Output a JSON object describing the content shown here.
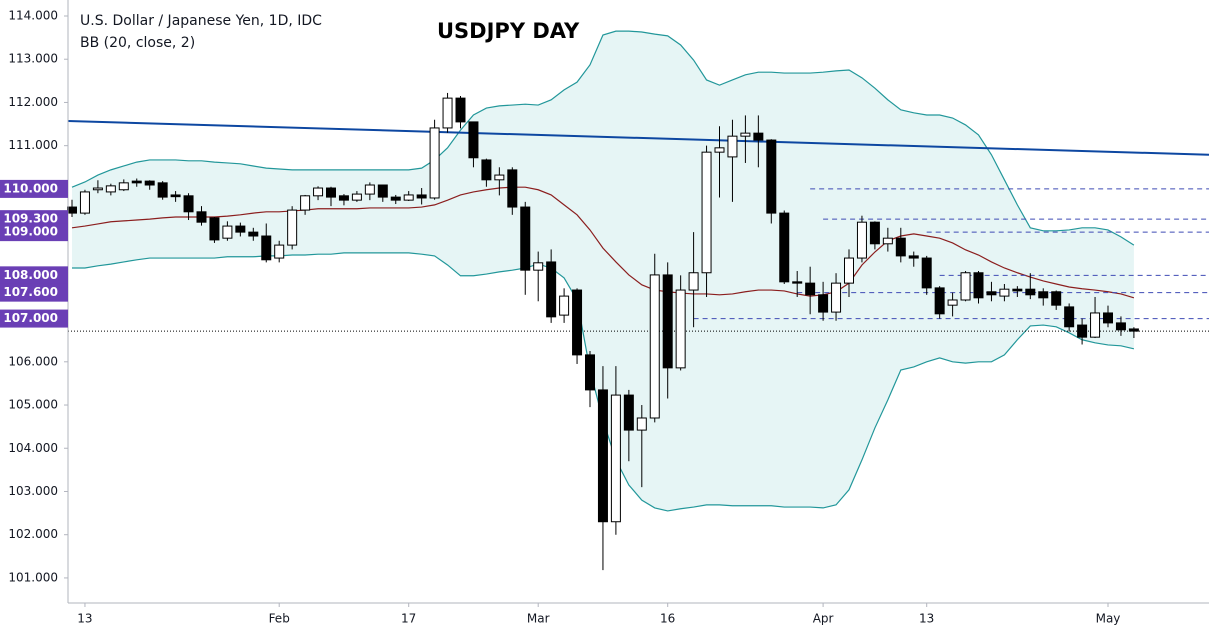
{
  "chart_data": {
    "type": "candlestick",
    "title": "USDJPY DAY",
    "symbol_label": "U.S. Dollar / Japanese Yen, 1D, IDC",
    "indicator_label": "BB (20, close, 2)",
    "categories": [
      null,
      "13",
      null,
      null,
      null,
      null,
      null,
      null,
      null,
      null,
      null,
      null,
      null,
      null,
      null,
      null,
      "Feb",
      null,
      null,
      null,
      null,
      null,
      null,
      null,
      null,
      null,
      "17",
      null,
      null,
      null,
      null,
      null,
      null,
      null,
      null,
      null,
      "Mar",
      null,
      null,
      null,
      null,
      null,
      null,
      null,
      null,
      null,
      "16",
      null,
      null,
      null,
      null,
      null,
      null,
      null,
      null,
      null,
      null,
      null,
      "Apr",
      null,
      null,
      null,
      null,
      null,
      null,
      null,
      "13",
      null,
      null,
      null,
      null,
      null,
      null,
      null,
      null,
      null,
      null,
      null,
      null,
      null,
      "May",
      null,
      null
    ],
    "open": [
      109.58,
      109.44,
      109.98,
      109.93,
      109.98,
      110.18,
      110.18,
      110.14,
      109.86,
      109.84,
      109.47,
      109.33,
      108.86,
      109.14,
      109.0,
      108.91,
      108.4,
      108.7,
      109.51,
      109.84,
      110.02,
      109.84,
      109.74,
      109.88,
      110.09,
      109.81,
      109.74,
      109.86,
      109.79,
      111.41,
      112.1,
      111.55,
      110.67,
      110.21,
      110.44,
      109.58,
      108.12,
      108.31,
      107.08,
      107.66,
      106.16,
      105.35,
      102.3,
      105.23,
      104.42,
      104.7,
      108.01,
      105.86,
      107.66,
      108.06,
      110.85,
      110.74,
      111.22,
      111.29,
      111.13,
      109.44,
      107.85,
      107.82,
      107.55,
      107.15,
      107.82,
      108.4,
      109.23,
      108.73,
      108.86,
      108.45,
      108.4,
      107.71,
      107.31,
      107.43,
      108.06,
      107.62,
      107.52,
      107.68,
      107.68,
      107.62,
      107.62,
      107.27,
      106.85,
      106.57,
      107.13,
      106.9,
      106.76
    ],
    "high": [
      109.75,
      109.98,
      110.2,
      110.12,
      110.22,
      110.24,
      110.2,
      110.18,
      109.95,
      109.9,
      109.6,
      109.35,
      109.25,
      109.22,
      109.1,
      109.2,
      108.8,
      109.6,
      109.86,
      110.06,
      110.05,
      109.88,
      109.95,
      110.15,
      110.1,
      109.86,
      109.95,
      110.02,
      111.6,
      112.22,
      112.15,
      111.55,
      110.7,
      110.5,
      110.5,
      109.7,
      108.55,
      108.6,
      107.7,
      107.7,
      106.25,
      105.9,
      105.9,
      105.35,
      105.0,
      108.5,
      108.3,
      108.0,
      109.0,
      111.0,
      111.45,
      111.6,
      111.7,
      111.7,
      111.15,
      109.5,
      108.1,
      108.2,
      107.85,
      108.05,
      108.6,
      109.38,
      109.25,
      109.1,
      109.1,
      108.55,
      108.45,
      107.75,
      107.6,
      108.1,
      108.1,
      107.85,
      107.8,
      107.75,
      108.05,
      107.7,
      107.65,
      107.35,
      107.0,
      107.5,
      107.3,
      107.05,
      106.8
    ],
    "low": [
      109.35,
      109.4,
      109.9,
      109.85,
      109.95,
      110.05,
      109.98,
      109.75,
      109.7,
      109.28,
      109.15,
      108.75,
      108.8,
      108.9,
      108.8,
      108.3,
      108.3,
      108.6,
      109.4,
      109.74,
      109.6,
      109.62,
      109.7,
      109.74,
      109.7,
      109.65,
      109.72,
      109.64,
      109.75,
      111.3,
      111.4,
      110.5,
      110.05,
      109.85,
      109.4,
      107.55,
      107.4,
      106.9,
      106.9,
      105.95,
      104.95,
      101.18,
      102.0,
      103.7,
      103.1,
      104.6,
      105.15,
      105.8,
      106.8,
      107.5,
      109.8,
      109.7,
      110.6,
      110.5,
      109.2,
      107.8,
      107.5,
      107.1,
      106.95,
      106.95,
      107.5,
      108.3,
      108.6,
      108.55,
      108.3,
      108.2,
      107.55,
      107.0,
      107.05,
      107.4,
      107.35,
      107.4,
      107.4,
      107.5,
      107.45,
      107.3,
      107.2,
      106.7,
      106.4,
      106.55,
      106.8,
      106.6,
      106.55
    ],
    "close": [
      109.44,
      109.93,
      110.02,
      110.07,
      110.14,
      110.14,
      110.09,
      109.81,
      109.82,
      109.47,
      109.23,
      108.82,
      109.14,
      109.0,
      108.91,
      108.36,
      108.7,
      109.51,
      109.84,
      110.02,
      109.81,
      109.74,
      109.88,
      110.09,
      109.81,
      109.74,
      109.86,
      109.79,
      111.41,
      112.1,
      111.55,
      110.72,
      110.21,
      110.32,
      109.58,
      108.12,
      108.29,
      107.04,
      107.52,
      106.16,
      105.35,
      102.3,
      105.23,
      104.42,
      104.7,
      108.01,
      105.86,
      107.66,
      108.06,
      110.85,
      110.95,
      111.22,
      111.29,
      111.13,
      109.44,
      107.85,
      107.82,
      107.55,
      107.15,
      107.82,
      108.4,
      109.23,
      108.73,
      108.86,
      108.45,
      108.4,
      107.71,
      107.11,
      107.43,
      108.06,
      107.48,
      107.55,
      107.68,
      107.64,
      107.55,
      107.48,
      107.31,
      106.81,
      106.57,
      107.13,
      106.9,
      106.74,
      106.71
    ],
    "up_color": "#ffffff",
    "down_color": "#000000",
    "bb_upper": {
      "color": "#22979a",
      "values": [
        110.04,
        110.16,
        110.32,
        110.44,
        110.53,
        110.62,
        110.67,
        110.67,
        110.67,
        110.65,
        110.65,
        110.62,
        110.6,
        110.58,
        110.53,
        110.48,
        110.46,
        110.44,
        110.44,
        110.44,
        110.44,
        110.44,
        110.44,
        110.44,
        110.44,
        110.44,
        110.44,
        110.48,
        110.67,
        110.95,
        111.36,
        111.71,
        111.87,
        111.92,
        111.94,
        111.96,
        111.94,
        112.06,
        112.29,
        112.47,
        112.87,
        113.56,
        113.65,
        113.65,
        113.63,
        113.58,
        113.54,
        113.33,
        112.98,
        112.52,
        112.4,
        112.52,
        112.64,
        112.7,
        112.7,
        112.68,
        112.68,
        112.68,
        112.7,
        112.73,
        112.75,
        112.57,
        112.33,
        112.06,
        111.83,
        111.76,
        111.71,
        111.71,
        111.64,
        111.48,
        111.25,
        110.79,
        110.21,
        109.63,
        109.1,
        109.03,
        109.03,
        109.05,
        109.1,
        109.1,
        109.05,
        108.89,
        108.7
      ]
    },
    "bb_basis": {
      "color": "#8b1e1e",
      "values": [
        109.1,
        109.14,
        109.19,
        109.24,
        109.26,
        109.28,
        109.3,
        109.33,
        109.35,
        109.35,
        109.35,
        109.35,
        109.37,
        109.4,
        109.44,
        109.47,
        109.47,
        109.49,
        109.51,
        109.54,
        109.54,
        109.54,
        109.54,
        109.56,
        109.56,
        109.56,
        109.56,
        109.58,
        109.63,
        109.74,
        109.86,
        109.93,
        109.98,
        110.02,
        110.04,
        110.04,
        109.98,
        109.86,
        109.63,
        109.4,
        109.05,
        108.63,
        108.31,
        108.01,
        107.78,
        107.66,
        107.62,
        107.59,
        107.57,
        107.57,
        107.55,
        107.57,
        107.62,
        107.66,
        107.66,
        107.64,
        107.57,
        107.52,
        107.55,
        107.62,
        107.82,
        108.24,
        108.54,
        108.8,
        108.91,
        108.96,
        108.91,
        108.86,
        108.75,
        108.59,
        108.47,
        108.31,
        108.17,
        108.06,
        107.96,
        107.87,
        107.8,
        107.73,
        107.69,
        107.66,
        107.62,
        107.57,
        107.48
      ]
    },
    "bb_lower": {
      "color": "#22979a",
      "values": [
        108.17,
        108.17,
        108.22,
        108.26,
        108.31,
        108.36,
        108.4,
        108.4,
        108.4,
        108.4,
        108.4,
        108.4,
        108.43,
        108.43,
        108.43,
        108.45,
        108.45,
        108.47,
        108.47,
        108.49,
        108.49,
        108.52,
        108.52,
        108.52,
        108.52,
        108.52,
        108.52,
        108.49,
        108.45,
        108.24,
        107.99,
        107.99,
        108.03,
        108.08,
        108.12,
        108.17,
        108.26,
        108.17,
        107.94,
        107.43,
        105.81,
        104.65,
        103.73,
        103.15,
        102.8,
        102.62,
        102.55,
        102.6,
        102.64,
        102.69,
        102.69,
        102.67,
        102.67,
        102.67,
        102.67,
        102.64,
        102.64,
        102.64,
        102.62,
        102.69,
        103.04,
        103.73,
        104.47,
        105.12,
        105.81,
        105.88,
        106.0,
        106.09,
        106.0,
        105.97,
        106.0,
        106.0,
        106.16,
        106.51,
        106.83,
        106.85,
        106.81,
        106.67,
        106.51,
        106.44,
        106.39,
        106.37,
        106.3
      ]
    },
    "band_fill": "#e6f5f5",
    "trendline": {
      "color": "#0d47a1",
      "values": [
        111.57,
        110.79
      ]
    },
    "levels": [
      {
        "value": 110,
        "label": "110.000",
        "from": 57
      },
      {
        "value": 109.3,
        "label": "109.300",
        "from": 58
      },
      {
        "value": 109,
        "label": "109.000",
        "from": 66
      },
      {
        "value": 108,
        "label": "108.000",
        "from": 67
      },
      {
        "value": 107.6,
        "label": "107.600",
        "from": 56
      },
      {
        "value": 107,
        "label": "107.000",
        "from": 48
      }
    ],
    "level_color": "#3f4bb5",
    "level_label_color": "#6a3fb5",
    "price_line": 106.71,
    "ylim": [
      100.42,
      114.37
    ],
    "yticks": [
      {
        "value": 114,
        "label": "114.000"
      },
      {
        "value": 113,
        "label": "113.000"
      },
      {
        "value": 112,
        "label": "112.000"
      },
      {
        "value": 111,
        "label": "111.000"
      },
      {
        "value": 110,
        "label": "110.000"
      },
      {
        "value": 109,
        "label": "109.000"
      },
      {
        "value": 108,
        "label": "108.000"
      },
      {
        "value": 107,
        "label": "107.000"
      },
      {
        "value": 106,
        "label": "106.000"
      },
      {
        "value": 105,
        "label": "105.000"
      },
      {
        "value": 104,
        "label": "104.000"
      },
      {
        "value": 103,
        "label": "103.000"
      },
      {
        "value": 102,
        "label": "102.000"
      },
      {
        "value": 101,
        "label": "101.000"
      }
    ]
  }
}
